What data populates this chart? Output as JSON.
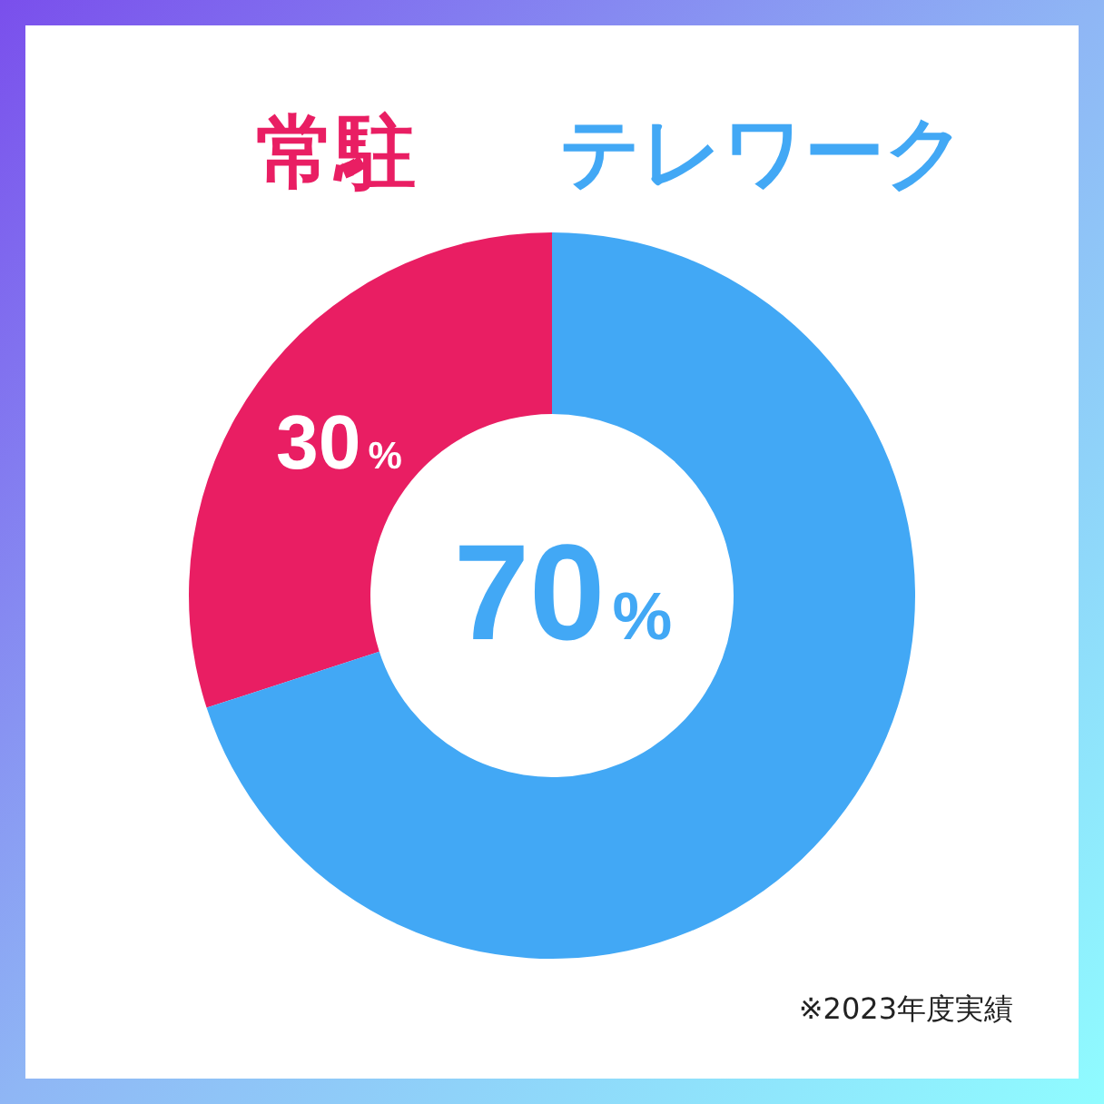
{
  "chart_data": {
    "type": "donut",
    "categories": [
      "常駐",
      "テレワーク"
    ],
    "values": [
      30,
      70
    ],
    "colors": [
      "#e91e63",
      "#42a8f5"
    ],
    "value_labels": [
      "30%",
      "70%"
    ],
    "annotations": [
      "※2023年度実績"
    ]
  }
}
